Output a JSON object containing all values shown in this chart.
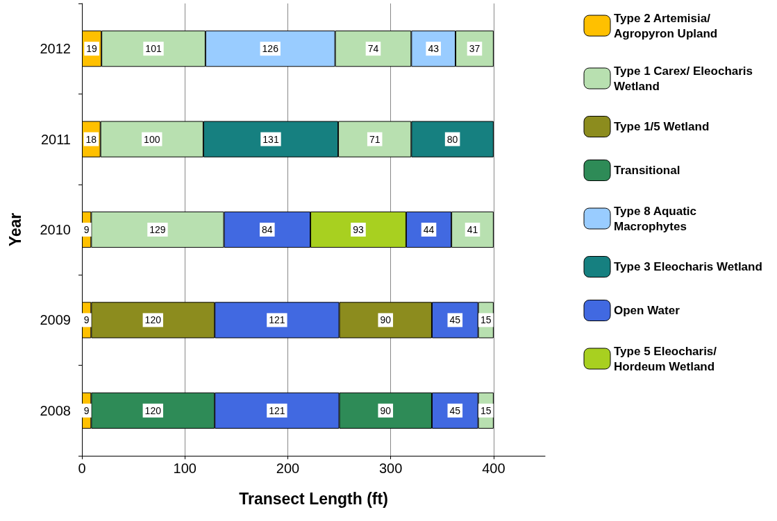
{
  "chart_data": {
    "type": "bar",
    "orientation": "horizontal",
    "stacked": true,
    "xlabel": "Transect Length (ft)",
    "ylabel": "Year",
    "categories": [
      "2012",
      "2011",
      "2010",
      "2009",
      "2008"
    ],
    "series": [
      {
        "name": "Type 2 Artemisia/ Agropyron Upland",
        "color": "#ffc000",
        "values": [
          19,
          18,
          9,
          9,
          9
        ]
      },
      {
        "name": "Type 1 Carex/ Eleocharis Wetland",
        "color": "#b8e0b0",
        "values": [
          101,
          100,
          129,
          null,
          null
        ]
      },
      {
        "name": "Type 1/5 Wetland",
        "color": "#8c8c1e",
        "values": [
          null,
          null,
          null,
          120,
          null
        ]
      },
      {
        "name": "Transitional",
        "color": "#2e8b57",
        "values": [
          null,
          null,
          null,
          null,
          120
        ]
      },
      {
        "name": "Type 8 Aquatic Macrophytes",
        "color": "#99ccff",
        "values": [
          126,
          null,
          null,
          null,
          null
        ]
      },
      {
        "name": "Type 3 Eleocharis Wetland",
        "color": "#168080",
        "values": [
          null,
          131,
          null,
          null,
          null
        ]
      },
      {
        "name": "Open Water",
        "color": "#4169e1",
        "values": [
          null,
          null,
          84,
          121,
          121
        ]
      },
      {
        "color": "#b8e0b0",
        "values": [
          74,
          71,
          null,
          null,
          null
        ]
      },
      {
        "name": "Type 5 Eleocharis/ Hordeum Wetland",
        "color": "#a8d020",
        "values": [
          null,
          null,
          93,
          null,
          null
        ]
      },
      {
        "color": "#8c8c1e",
        "values": [
          null,
          null,
          null,
          90,
          null
        ]
      },
      {
        "color": "#2e8b57",
        "values": [
          null,
          null,
          null,
          null,
          90
        ]
      },
      {
        "color": "#99ccff",
        "values": [
          43,
          null,
          null,
          null,
          null
        ]
      },
      {
        "color": "#168080",
        "values": [
          null,
          80,
          null,
          null,
          null
        ]
      },
      {
        "color": "#4169e1",
        "values": [
          null,
          null,
          44,
          45,
          45
        ]
      },
      {
        "color": "#b8e0b0",
        "values": [
          37,
          null,
          41,
          15,
          15
        ]
      }
    ],
    "xlim": [
      0,
      450
    ],
    "xticks": [
      0,
      100,
      200,
      300,
      400
    ],
    "grid": "x",
    "legend": "right",
    "data_labels": true
  }
}
